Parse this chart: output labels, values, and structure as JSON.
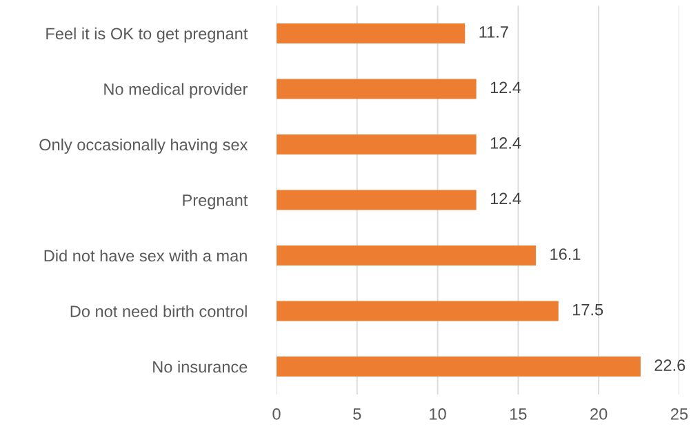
{
  "chart_data": {
    "type": "bar",
    "orientation": "horizontal",
    "categories": [
      "Feel it is OK to get pregnant",
      "No medical provider",
      "Only occasionally having sex",
      "Pregnant",
      "Did not have sex with a man",
      "Do not need birth control",
      "No insurance"
    ],
    "values": [
      11.7,
      12.4,
      12.4,
      12.4,
      16.1,
      17.5,
      22.6
    ],
    "color": "#ed7d31",
    "xlim": [
      0,
      25
    ],
    "xticks": [
      0,
      5,
      10,
      15,
      20,
      25
    ],
    "grid": "x",
    "data_labels": true
  }
}
